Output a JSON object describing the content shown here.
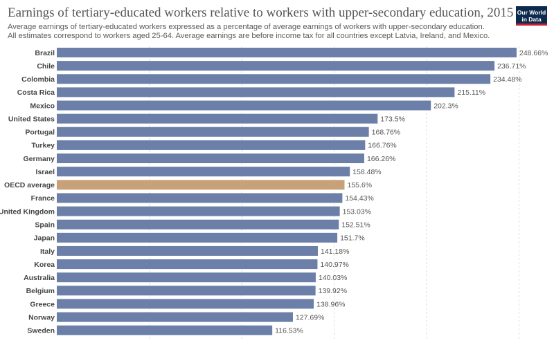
{
  "header": {
    "title": "Earnings of tertiary-educated workers relative to workers with upper-secondary education, 2015",
    "subtitle": "Average earnings of tertiary-educated workers expressed as a percentage of average earnings of workers with upper-secondary education. All estimates correspond to workers aged 25-64. Average earnings are before income tax for all countries except Latvia, Ireland, and Mexico.",
    "logo_line1": "Our World",
    "logo_line2": "in Data"
  },
  "colors": {
    "bar": "#6b7fa8",
    "highlight": "#c9a179",
    "logo_bg": "#0c2a4d",
    "logo_accent": "#c8202e"
  },
  "chart_data": {
    "type": "bar",
    "orientation": "horizontal",
    "value_suffix": "%",
    "highlight_category": "OECD average",
    "xlim": [
      0,
      250
    ],
    "grid": true,
    "categories": [
      "Brazil",
      "Chile",
      "Colombia",
      "Costa Rica",
      "Mexico",
      "United States",
      "Portugal",
      "Turkey",
      "Germany",
      "Israel",
      "OECD average",
      "France",
      "United Kingdom",
      "Spain",
      "Japan",
      "Italy",
      "Korea",
      "Australia",
      "Belgium",
      "Greece",
      "Norway",
      "Sweden"
    ],
    "values": [
      248.66,
      236.71,
      234.48,
      215.11,
      202.3,
      173.5,
      168.76,
      166.76,
      166.26,
      158.48,
      155.6,
      154.43,
      153.03,
      152.51,
      151.7,
      141.18,
      140.97,
      140.03,
      139.92,
      138.96,
      127.69,
      116.53
    ],
    "labels": [
      "248.66%",
      "236.71%",
      "234.48%",
      "215.11%",
      "202.3%",
      "173.5%",
      "168.76%",
      "166.76%",
      "166.26%",
      "158.48%",
      "155.6%",
      "154.43%",
      "153.03%",
      "152.51%",
      "151.7%",
      "141.18%",
      "140.97%",
      "140.03%",
      "139.92%",
      "138.96%",
      "127.69%",
      "116.53%"
    ]
  }
}
